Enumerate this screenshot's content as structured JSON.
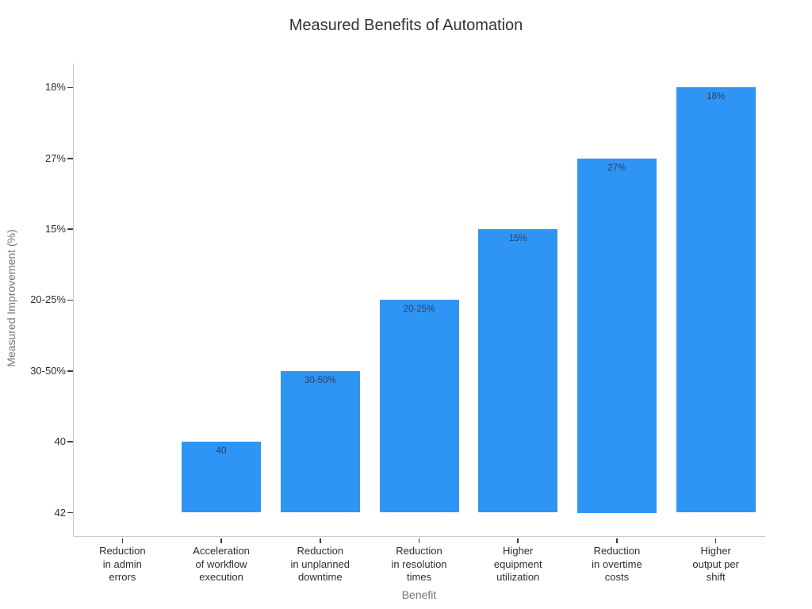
{
  "chart_data": {
    "type": "bar",
    "orientation": "vertical",
    "title": "Measured Benefits of Automation",
    "xlabel": "Benefit",
    "ylabel": "Measured Improvement (%)",
    "categories": [
      "Reduction\nin admin\nerrors",
      "Acceleration\nof workflow\nexecution",
      "Reduction\nin unplanned\ndowntime",
      "Reduction\nin resolution\ntimes",
      "Higher\nequipment\nutilization",
      "Reduction\nin overtime\ncosts",
      "Higher\noutput per\nshift"
    ],
    "values": [
      "42",
      "40",
      "30-50%",
      "20-25%",
      "15%",
      "27%",
      "18%"
    ],
    "bar_value_labels": [
      "",
      "40",
      "30-50%",
      "20-25%",
      "15%",
      "27%",
      "18%"
    ],
    "y_tick_labels_bottom_to_top": [
      "42",
      "40",
      "30-50%",
      "20-25%",
      "15%",
      "27%",
      "18%"
    ],
    "y_axis_note": "categorical y-axis; bars rise from the '42' baseline to their value's category position",
    "grid": false,
    "legend_position": "none",
    "colors": {
      "bar": "#2F95F4",
      "bar_label": "#2a3f5f",
      "tick_label": "#2e2e2e",
      "axis_title": "#757575",
      "axis_line": "#cbcbcb",
      "tick_mark": "#3a3a3a",
      "title": "#333333",
      "background": "#ffffff"
    }
  }
}
